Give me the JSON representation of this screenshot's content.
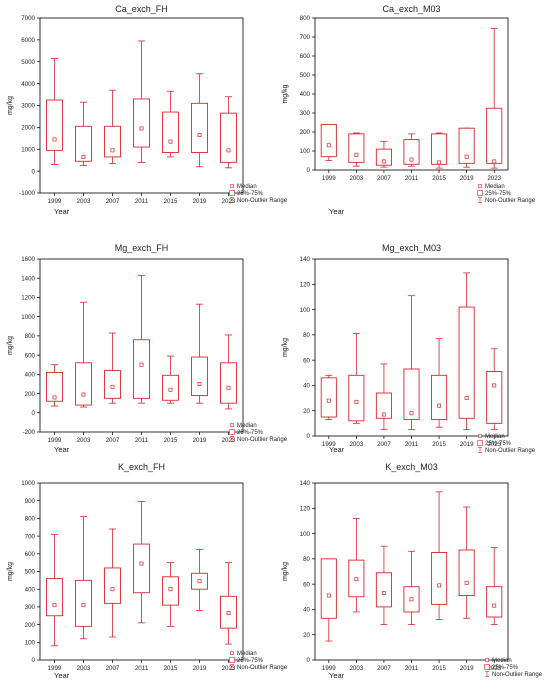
{
  "colors": {
    "box": "#d9262c",
    "axis": "#000000",
    "text": "#222222"
  },
  "chart_data": [
    {
      "type": "box",
      "title": "Ca_exch_FH",
      "xlabel": "Year",
      "ylabel": "mg/kg",
      "ylim": [
        -1000,
        7000
      ],
      "yticks": [
        -1000,
        0,
        1000,
        2000,
        3000,
        4000,
        5000,
        6000,
        7000
      ],
      "categories": [
        "1999",
        "2003",
        "2007",
        "2011",
        "2015",
        "2019",
        "2023"
      ],
      "boxes": [
        {
          "min": 300,
          "q1": 950,
          "median": 1450,
          "q3": 3250,
          "max": 5150
        },
        {
          "min": 250,
          "q1": 450,
          "median": 650,
          "q3": 2050,
          "max": 3150
        },
        {
          "min": 350,
          "q1": 650,
          "median": 950,
          "q3": 2050,
          "max": 3700
        },
        {
          "min": 400,
          "q1": 1100,
          "median": 1950,
          "q3": 3300,
          "max": 5950
        },
        {
          "min": 650,
          "q1": 850,
          "median": 1350,
          "q3": 2700,
          "max": 3650
        },
        {
          "min": 200,
          "q1": 850,
          "median": 1650,
          "q3": 3100,
          "max": 4450
        },
        {
          "min": 150,
          "q1": 400,
          "median": 950,
          "q3": 2650,
          "max": 3400
        }
      ],
      "legend": [
        "Median",
        "25%-75%",
        "Non-Outlier Range"
      ]
    },
    {
      "type": "box",
      "title": "Ca_exch_M03",
      "xlabel": "Year",
      "ylabel": "mg/kg",
      "ylim": [
        0,
        800
      ],
      "yticks": [
        0,
        100,
        200,
        300,
        400,
        500,
        600,
        700,
        800
      ],
      "categories": [
        "1999",
        "2003",
        "2007",
        "2011",
        "2015",
        "2019",
        "2023"
      ],
      "boxes": [
        {
          "min": 50,
          "q1": 70,
          "median": 130,
          "q3": 240,
          "max": 240
        },
        {
          "min": 20,
          "q1": 40,
          "median": 80,
          "q3": 190,
          "max": 195
        },
        {
          "min": 15,
          "q1": 25,
          "median": 45,
          "q3": 110,
          "max": 150
        },
        {
          "min": 20,
          "q1": 30,
          "median": 55,
          "q3": 160,
          "max": 190
        },
        {
          "min": 10,
          "q1": 30,
          "median": 40,
          "q3": 190,
          "max": 195
        },
        {
          "min": 15,
          "q1": 35,
          "median": 70,
          "q3": 220,
          "max": 220
        },
        {
          "min": 10,
          "q1": 35,
          "median": 45,
          "q3": 325,
          "max": 745
        }
      ],
      "legend": [
        "Median",
        "25%-75%",
        "Non-Outlier Range"
      ]
    },
    {
      "type": "box",
      "title": "Mg_exch_FH",
      "xlabel": "Year",
      "ylabel": "mg/kg",
      "ylim": [
        -200,
        1600
      ],
      "yticks": [
        -200,
        0,
        200,
        400,
        600,
        800,
        1000,
        1200,
        1400,
        1600
      ],
      "categories": [
        "1999",
        "2003",
        "2007",
        "2011",
        "2015",
        "2019",
        "2023"
      ],
      "boxes": [
        {
          "min": 70,
          "q1": 120,
          "median": 160,
          "q3": 420,
          "max": 500
        },
        {
          "min": 60,
          "q1": 80,
          "median": 190,
          "q3": 520,
          "max": 1150
        },
        {
          "min": 100,
          "q1": 150,
          "median": 270,
          "q3": 440,
          "max": 830
        },
        {
          "min": 100,
          "q1": 150,
          "median": 500,
          "q3": 760,
          "max": 1430
        },
        {
          "min": 100,
          "q1": 130,
          "median": 240,
          "q3": 390,
          "max": 590
        },
        {
          "min": 100,
          "q1": 180,
          "median": 300,
          "q3": 580,
          "max": 1130
        },
        {
          "min": 40,
          "q1": 100,
          "median": 260,
          "q3": 520,
          "max": 810
        }
      ],
      "legend": [
        "Median",
        "25%-75%",
        "Non-Outlier Range"
      ]
    },
    {
      "type": "box",
      "title": "Mg_exch_M03",
      "xlabel": "Year",
      "ylabel": "mg/kg",
      "ylim": [
        0,
        140
      ],
      "yticks": [
        0,
        20,
        40,
        60,
        80,
        100,
        120,
        140
      ],
      "categories": [
        "1999",
        "2003",
        "2007",
        "2011",
        "2015",
        "2019",
        "2023"
      ],
      "boxes": [
        {
          "min": 13,
          "q1": 15,
          "median": 28,
          "q3": 46,
          "max": 48
        },
        {
          "min": 10,
          "q1": 12,
          "median": 27,
          "q3": 48,
          "max": 81
        },
        {
          "min": 5,
          "q1": 14,
          "median": 17,
          "q3": 34,
          "max": 57
        },
        {
          "min": 5,
          "q1": 13,
          "median": 18,
          "q3": 53,
          "max": 111
        },
        {
          "min": 7,
          "q1": 13,
          "median": 24,
          "q3": 48,
          "max": 77
        },
        {
          "min": 5,
          "q1": 14,
          "median": 30,
          "q3": 102,
          "max": 129
        },
        {
          "min": 5,
          "q1": 10,
          "median": 40,
          "q3": 51,
          "max": 69
        }
      ],
      "legend": [
        "Median",
        "25%-75%",
        "Non-Outlier Range"
      ]
    },
    {
      "type": "box",
      "title": "K_exch_FH",
      "xlabel": "Year",
      "ylabel": "mg/kg",
      "ylim": [
        0,
        1000
      ],
      "yticks": [
        0,
        100,
        200,
        300,
        400,
        500,
        600,
        700,
        800,
        900,
        1000
      ],
      "categories": [
        "1999",
        "2003",
        "2007",
        "2011",
        "2015",
        "2019",
        "2023"
      ],
      "boxes": [
        {
          "min": 80,
          "q1": 250,
          "median": 310,
          "q3": 460,
          "max": 710
        },
        {
          "min": 120,
          "q1": 190,
          "median": 310,
          "q3": 450,
          "max": 810
        },
        {
          "min": 130,
          "q1": 320,
          "median": 400,
          "q3": 520,
          "max": 740
        },
        {
          "min": 210,
          "q1": 380,
          "median": 545,
          "q3": 655,
          "max": 895
        },
        {
          "min": 190,
          "q1": 310,
          "median": 400,
          "q3": 470,
          "max": 550
        },
        {
          "min": 280,
          "q1": 400,
          "median": 445,
          "q3": 490,
          "max": 625
        },
        {
          "min": 90,
          "q1": 180,
          "median": 265,
          "q3": 360,
          "max": 550
        }
      ],
      "legend": [
        "Median",
        "25%-75%",
        "Non-Outlier Range"
      ]
    },
    {
      "type": "box",
      "title": "K_exch_M03",
      "xlabel": "Year",
      "ylabel": "mg/kg",
      "ylim": [
        0,
        140
      ],
      "yticks": [
        0,
        20,
        40,
        60,
        80,
        100,
        120,
        140
      ],
      "categories": [
        "1999",
        "2003",
        "2007",
        "2011",
        "2015",
        "2019",
        "2023"
      ],
      "boxes": [
        {
          "min": 15,
          "q1": 33,
          "median": 51,
          "q3": 80,
          "max": 80
        },
        {
          "min": 38,
          "q1": 50,
          "median": 64,
          "q3": 79,
          "max": 112
        },
        {
          "min": 28,
          "q1": 42,
          "median": 53,
          "q3": 69,
          "max": 90
        },
        {
          "min": 28,
          "q1": 38,
          "median": 48,
          "q3": 58,
          "max": 86
        },
        {
          "min": 32,
          "q1": 44,
          "median": 59,
          "q3": 85,
          "max": 133
        },
        {
          "min": 33,
          "q1": 51,
          "median": 61,
          "q3": 87,
          "max": 121
        },
        {
          "min": 28,
          "q1": 34,
          "median": 43,
          "q3": 58,
          "max": 89
        }
      ],
      "legend": [
        "Median",
        "25%-75%",
        "Non-Outlier Range"
      ]
    }
  ]
}
